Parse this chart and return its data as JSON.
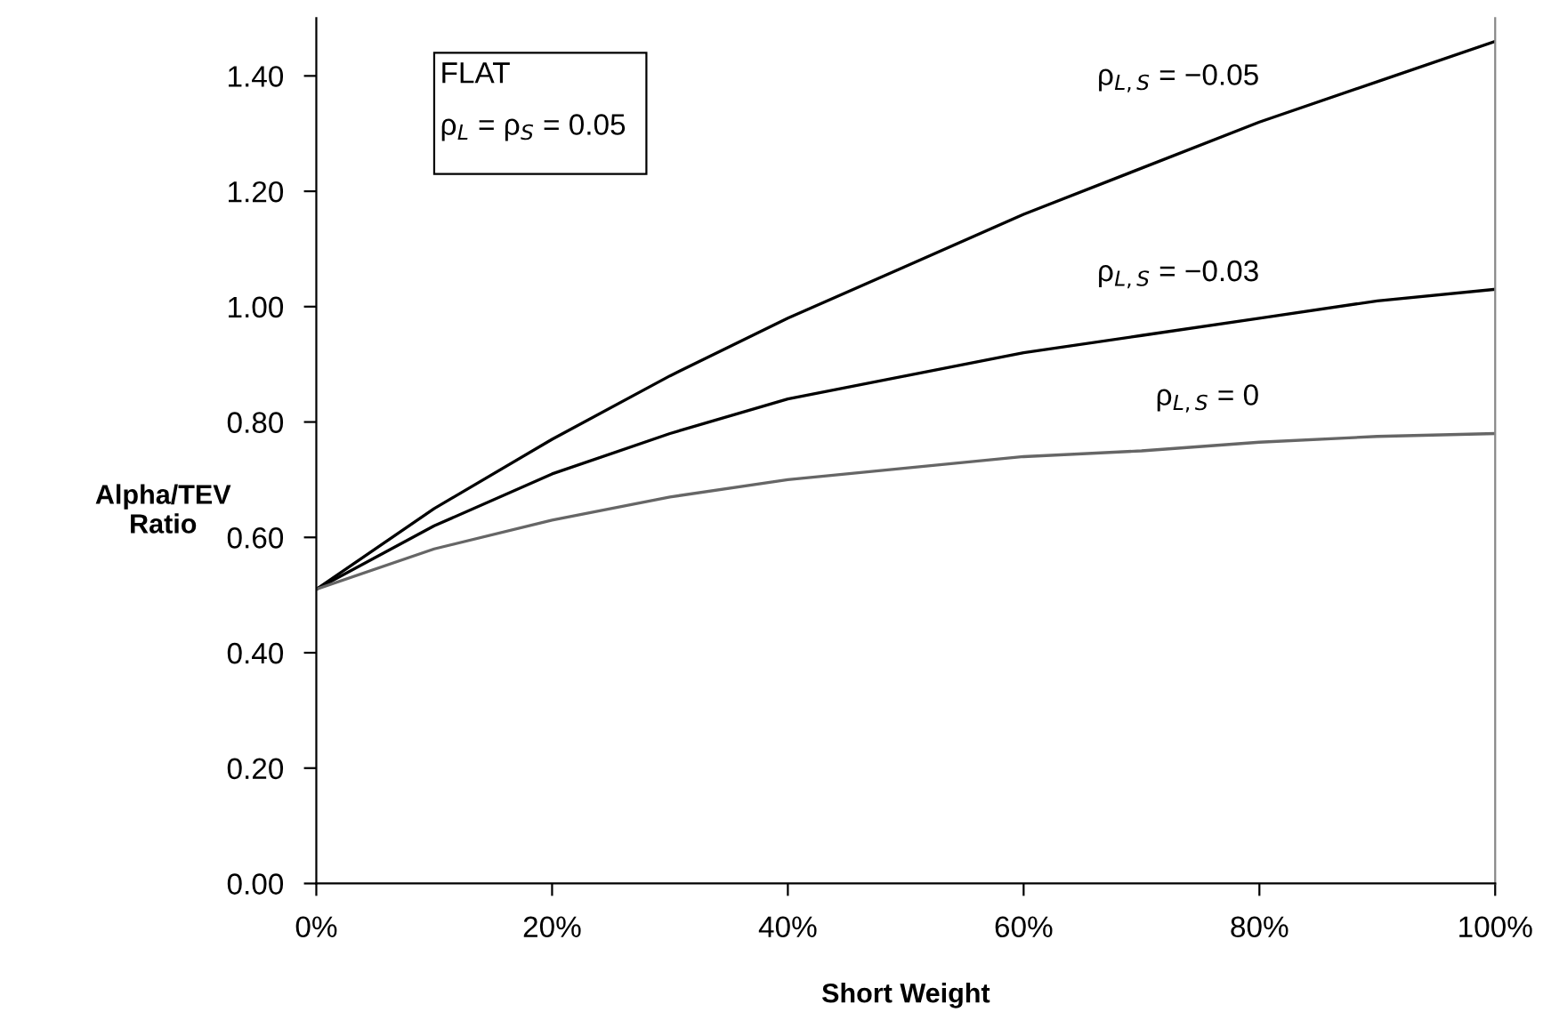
{
  "chart_data": {
    "type": "line",
    "xlabel": "Short Weight",
    "ylabel": "Alpha/TEV\nRatio",
    "x": [
      0,
      10,
      20,
      30,
      40,
      50,
      60,
      70,
      80,
      90,
      100
    ],
    "series": [
      {
        "name": "ρ$_{L,S}$ = −0.05",
        "color": "#000000",
        "values": [
          0.51,
          0.65,
          0.77,
          0.88,
          0.98,
          1.07,
          1.16,
          1.24,
          1.32,
          1.39,
          1.46
        ]
      },
      {
        "name": "ρ$_{L,S}$ = −0.03",
        "color": "#000000",
        "values": [
          0.51,
          0.62,
          0.71,
          0.78,
          0.84,
          0.88,
          0.92,
          0.95,
          0.98,
          1.01,
          1.03
        ]
      },
      {
        "name": "ρ$_{L,S}$ = 0",
        "color": "#666666",
        "values": [
          0.51,
          0.58,
          0.63,
          0.67,
          0.7,
          0.72,
          0.74,
          0.75,
          0.765,
          0.775,
          0.78
        ]
      }
    ],
    "annotations": [
      "FLAT\nρ$_{L}$ = ρ$_{S}$ = 0.05"
    ],
    "xlim": [
      0,
      100
    ],
    "ylim": [
      0,
      1.5
    ],
    "xticks": [
      {
        "value": 0,
        "label": "0%"
      },
      {
        "value": 20,
        "label": "20%"
      },
      {
        "value": 40,
        "label": "40%"
      },
      {
        "value": 60,
        "label": "60%"
      },
      {
        "value": 80,
        "label": "80%"
      },
      {
        "value": 100,
        "label": "100%"
      }
    ],
    "yticks": [
      {
        "value": 0,
        "label": "0.00"
      },
      {
        "value": 0.2,
        "label": "0.20"
      },
      {
        "value": 0.4,
        "label": "0.40"
      },
      {
        "value": 0.6,
        "label": "0.60"
      },
      {
        "value": 0.8,
        "label": "0.80"
      },
      {
        "value": 1.0,
        "label": "1.00"
      },
      {
        "value": 1.2,
        "label": "1.20"
      },
      {
        "value": 1.4,
        "label": "1.40"
      }
    ],
    "grid": false,
    "legend": false,
    "marker": "none",
    "line_style": "solid"
  }
}
